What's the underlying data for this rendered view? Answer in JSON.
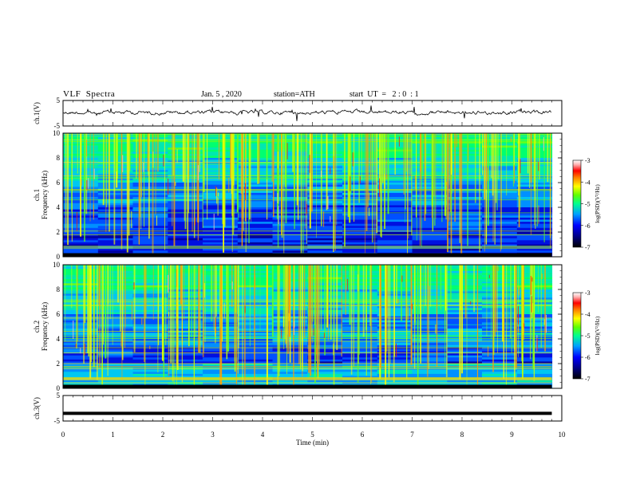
{
  "header": {
    "title": "VLF  Spectra",
    "date": "Jan. 5 , 2020",
    "station": "station=ATH",
    "start": "start  UT  =   2 : 0  : 1"
  },
  "chart_data": [
    {
      "type": "line",
      "panel": "ch1-waveform",
      "ylabel": "ch.1(V)",
      "ylim": [
        -5,
        5
      ],
      "yticks": [
        "5",
        "-5"
      ],
      "xlim": [
        0,
        10
      ],
      "description_values": "noise-like waveform around 0 V with amplitude about ±0.8 V, ending near 9.8 min"
    },
    {
      "type": "heatmap",
      "panel": "ch1-spectrogram",
      "ylabel": "ch.1\nFrequency  (kHz)",
      "ylim": [
        0,
        10
      ],
      "yticks": [
        "0",
        "2",
        "4",
        "6",
        "8",
        "10"
      ],
      "xlim": [
        0,
        9.8
      ],
      "colorbar": {
        "label": "log(PSD)(V²/Hz)",
        "ticks": [
          "-3",
          "-4",
          "-5",
          "-6",
          "-7"
        ],
        "range": [
          -7,
          -3
        ]
      }
    },
    {
      "type": "heatmap",
      "panel": "ch2-spectrogram",
      "ylabel": "ch.2\nFrequency  (kHz)",
      "ylim": [
        0,
        10
      ],
      "yticks": [
        "0",
        "2",
        "4",
        "6",
        "8",
        "10"
      ],
      "xlim": [
        0,
        9.8
      ],
      "colorbar": {
        "label": "log(PSD)(V²/Hz)",
        "ticks": [
          "-3",
          "-4",
          "-5",
          "-6",
          "-7"
        ],
        "range": [
          -7,
          -3
        ]
      }
    },
    {
      "type": "line",
      "panel": "ch3-waveform",
      "ylabel": "ch.3(V)",
      "ylim": [
        -5,
        5
      ],
      "yticks": [
        "5",
        "-5"
      ],
      "xlim": [
        0,
        10
      ],
      "series": [
        {
          "x": [
            0,
            9.8
          ],
          "y": [
            -2,
            -2
          ]
        }
      ]
    }
  ],
  "xaxis": {
    "label": "Time  (min)",
    "ticks": [
      "0",
      "1",
      "2",
      "3",
      "4",
      "5",
      "6",
      "7",
      "8",
      "9",
      "10"
    ]
  },
  "colors": {
    "scale": [
      "#000080",
      "#0000ff",
      "#00b0ff",
      "#00ff80",
      "#80ff00",
      "#ffff00",
      "#ff8000",
      "#ff0000",
      "#ffc0c0",
      "#ffffff"
    ]
  }
}
